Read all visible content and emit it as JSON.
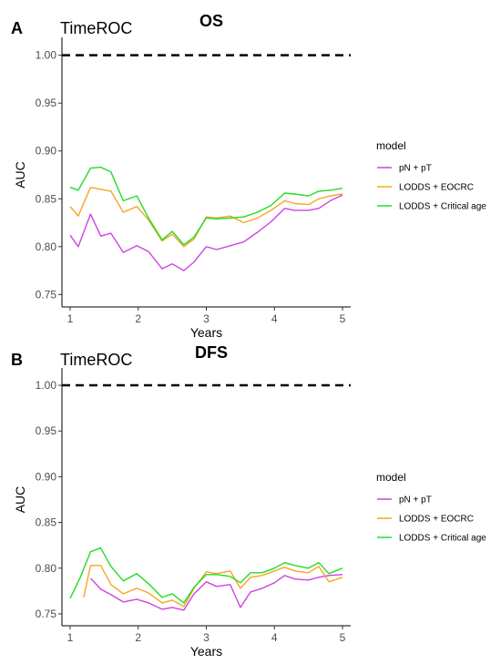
{
  "chart_data": [
    {
      "type": "line",
      "panel_letter": "A",
      "subtitle": "TimeROC",
      "title": "OS",
      "xlabel": "Years",
      "ylabel": "AUC",
      "xlim": [
        0.88,
        5.12
      ],
      "ylim": [
        0.737,
        1.013
      ],
      "x_ticks": [
        1,
        2,
        3,
        4,
        5
      ],
      "y_ticks": [
        0.75,
        0.8,
        0.85,
        0.9,
        0.95,
        1.0
      ],
      "y_tick_labels": [
        "0.75",
        "0.80",
        "0.85",
        "0.90",
        "0.95",
        "1.00"
      ],
      "reference_line": {
        "y": 1.0,
        "style": "dashed",
        "color": "#000000"
      },
      "grid": false,
      "legend": {
        "title": "model",
        "position": "right"
      },
      "series": [
        {
          "name": "pN + pT",
          "color": "#cc44e0",
          "x": [
            1.0,
            1.12,
            1.3,
            1.45,
            1.6,
            1.78,
            1.98,
            2.15,
            2.35,
            2.5,
            2.67,
            2.82,
            3.0,
            3.15,
            3.35,
            3.55,
            3.75,
            3.95,
            4.15,
            4.3,
            4.5,
            4.65,
            4.82,
            5.0
          ],
          "y": [
            0.812,
            0.8,
            0.834,
            0.811,
            0.814,
            0.794,
            0.801,
            0.795,
            0.777,
            0.782,
            0.775,
            0.784,
            0.8,
            0.797,
            0.801,
            0.805,
            0.815,
            0.826,
            0.84,
            0.838,
            0.838,
            0.84,
            0.848,
            0.854
          ]
        },
        {
          "name": "LODDS + EOCRC",
          "color": "#f5a623",
          "x": [
            1.0,
            1.12,
            1.3,
            1.45,
            1.6,
            1.78,
            1.98,
            2.15,
            2.35,
            2.5,
            2.67,
            2.82,
            3.0,
            3.15,
            3.35,
            3.55,
            3.75,
            3.95,
            4.15,
            4.3,
            4.5,
            4.65,
            4.82,
            5.0
          ],
          "y": [
            0.842,
            0.832,
            0.862,
            0.86,
            0.858,
            0.836,
            0.842,
            0.828,
            0.806,
            0.813,
            0.8,
            0.808,
            0.831,
            0.83,
            0.832,
            0.825,
            0.83,
            0.838,
            0.848,
            0.845,
            0.844,
            0.85,
            0.853,
            0.855
          ]
        },
        {
          "name": "LODDS + Critical age",
          "color": "#22dd22",
          "x": [
            1.0,
            1.12,
            1.3,
            1.45,
            1.6,
            1.78,
            1.98,
            2.15,
            2.35,
            2.5,
            2.67,
            2.82,
            3.0,
            3.15,
            3.35,
            3.55,
            3.75,
            3.95,
            4.15,
            4.3,
            4.5,
            4.65,
            4.82,
            5.0
          ],
          "y": [
            0.862,
            0.859,
            0.882,
            0.883,
            0.878,
            0.848,
            0.853,
            0.83,
            0.807,
            0.816,
            0.802,
            0.81,
            0.83,
            0.829,
            0.83,
            0.831,
            0.836,
            0.843,
            0.856,
            0.855,
            0.853,
            0.858,
            0.859,
            0.861
          ]
        }
      ]
    },
    {
      "type": "line",
      "panel_letter": "B",
      "subtitle": "TimeROC",
      "title": "DFS",
      "xlabel": "Years",
      "ylabel": "AUC",
      "xlim": [
        0.88,
        5.12
      ],
      "ylim": [
        0.737,
        1.013
      ],
      "x_ticks": [
        1,
        2,
        3,
        4,
        5
      ],
      "y_ticks": [
        0.75,
        0.8,
        0.85,
        0.9,
        0.95,
        1.0
      ],
      "y_tick_labels": [
        "0.75",
        "0.80",
        "0.85",
        "0.90",
        "0.95",
        "1.00"
      ],
      "reference_line": {
        "y": 1.0,
        "style": "dashed",
        "color": "#000000"
      },
      "grid": false,
      "legend": {
        "title": "model",
        "position": "right"
      },
      "series": [
        {
          "name": "pN + pT",
          "color": "#cc44e0",
          "x": [
            1.3,
            1.45,
            1.6,
            1.78,
            1.98,
            2.15,
            2.35,
            2.5,
            2.67,
            2.82,
            3.0,
            3.15,
            3.35,
            3.5,
            3.65,
            3.82,
            4.0,
            4.15,
            4.3,
            4.5,
            4.65,
            4.8,
            5.0
          ],
          "y": [
            0.789,
            0.777,
            0.771,
            0.763,
            0.766,
            0.762,
            0.755,
            0.757,
            0.754,
            0.772,
            0.785,
            0.78,
            0.782,
            0.757,
            0.774,
            0.778,
            0.784,
            0.792,
            0.788,
            0.787,
            0.79,
            0.792,
            0.793
          ]
        },
        {
          "name": "LODDS + EOCRC",
          "color": "#f5a623",
          "x": [
            1.2,
            1.3,
            1.45,
            1.6,
            1.78,
            1.98,
            2.15,
            2.35,
            2.5,
            2.67,
            2.82,
            3.0,
            3.15,
            3.35,
            3.5,
            3.65,
            3.82,
            4.0,
            4.15,
            4.3,
            4.5,
            4.65,
            4.8,
            5.0
          ],
          "y": [
            0.768,
            0.803,
            0.803,
            0.782,
            0.772,
            0.778,
            0.773,
            0.762,
            0.765,
            0.758,
            0.778,
            0.796,
            0.794,
            0.797,
            0.778,
            0.79,
            0.792,
            0.797,
            0.801,
            0.797,
            0.795,
            0.802,
            0.785,
            0.79
          ]
        },
        {
          "name": "LODDS + Critical age",
          "color": "#22dd22",
          "x": [
            1.0,
            1.15,
            1.3,
            1.45,
            1.6,
            1.78,
            1.98,
            2.15,
            2.35,
            2.5,
            2.67,
            2.82,
            3.0,
            3.15,
            3.35,
            3.5,
            3.65,
            3.82,
            4.0,
            4.15,
            4.3,
            4.5,
            4.65,
            4.8,
            5.0
          ],
          "y": [
            0.767,
            0.79,
            0.818,
            0.822,
            0.802,
            0.786,
            0.794,
            0.783,
            0.768,
            0.772,
            0.762,
            0.779,
            0.793,
            0.793,
            0.791,
            0.784,
            0.795,
            0.795,
            0.8,
            0.806,
            0.803,
            0.8,
            0.806,
            0.794,
            0.8
          ]
        }
      ]
    }
  ]
}
